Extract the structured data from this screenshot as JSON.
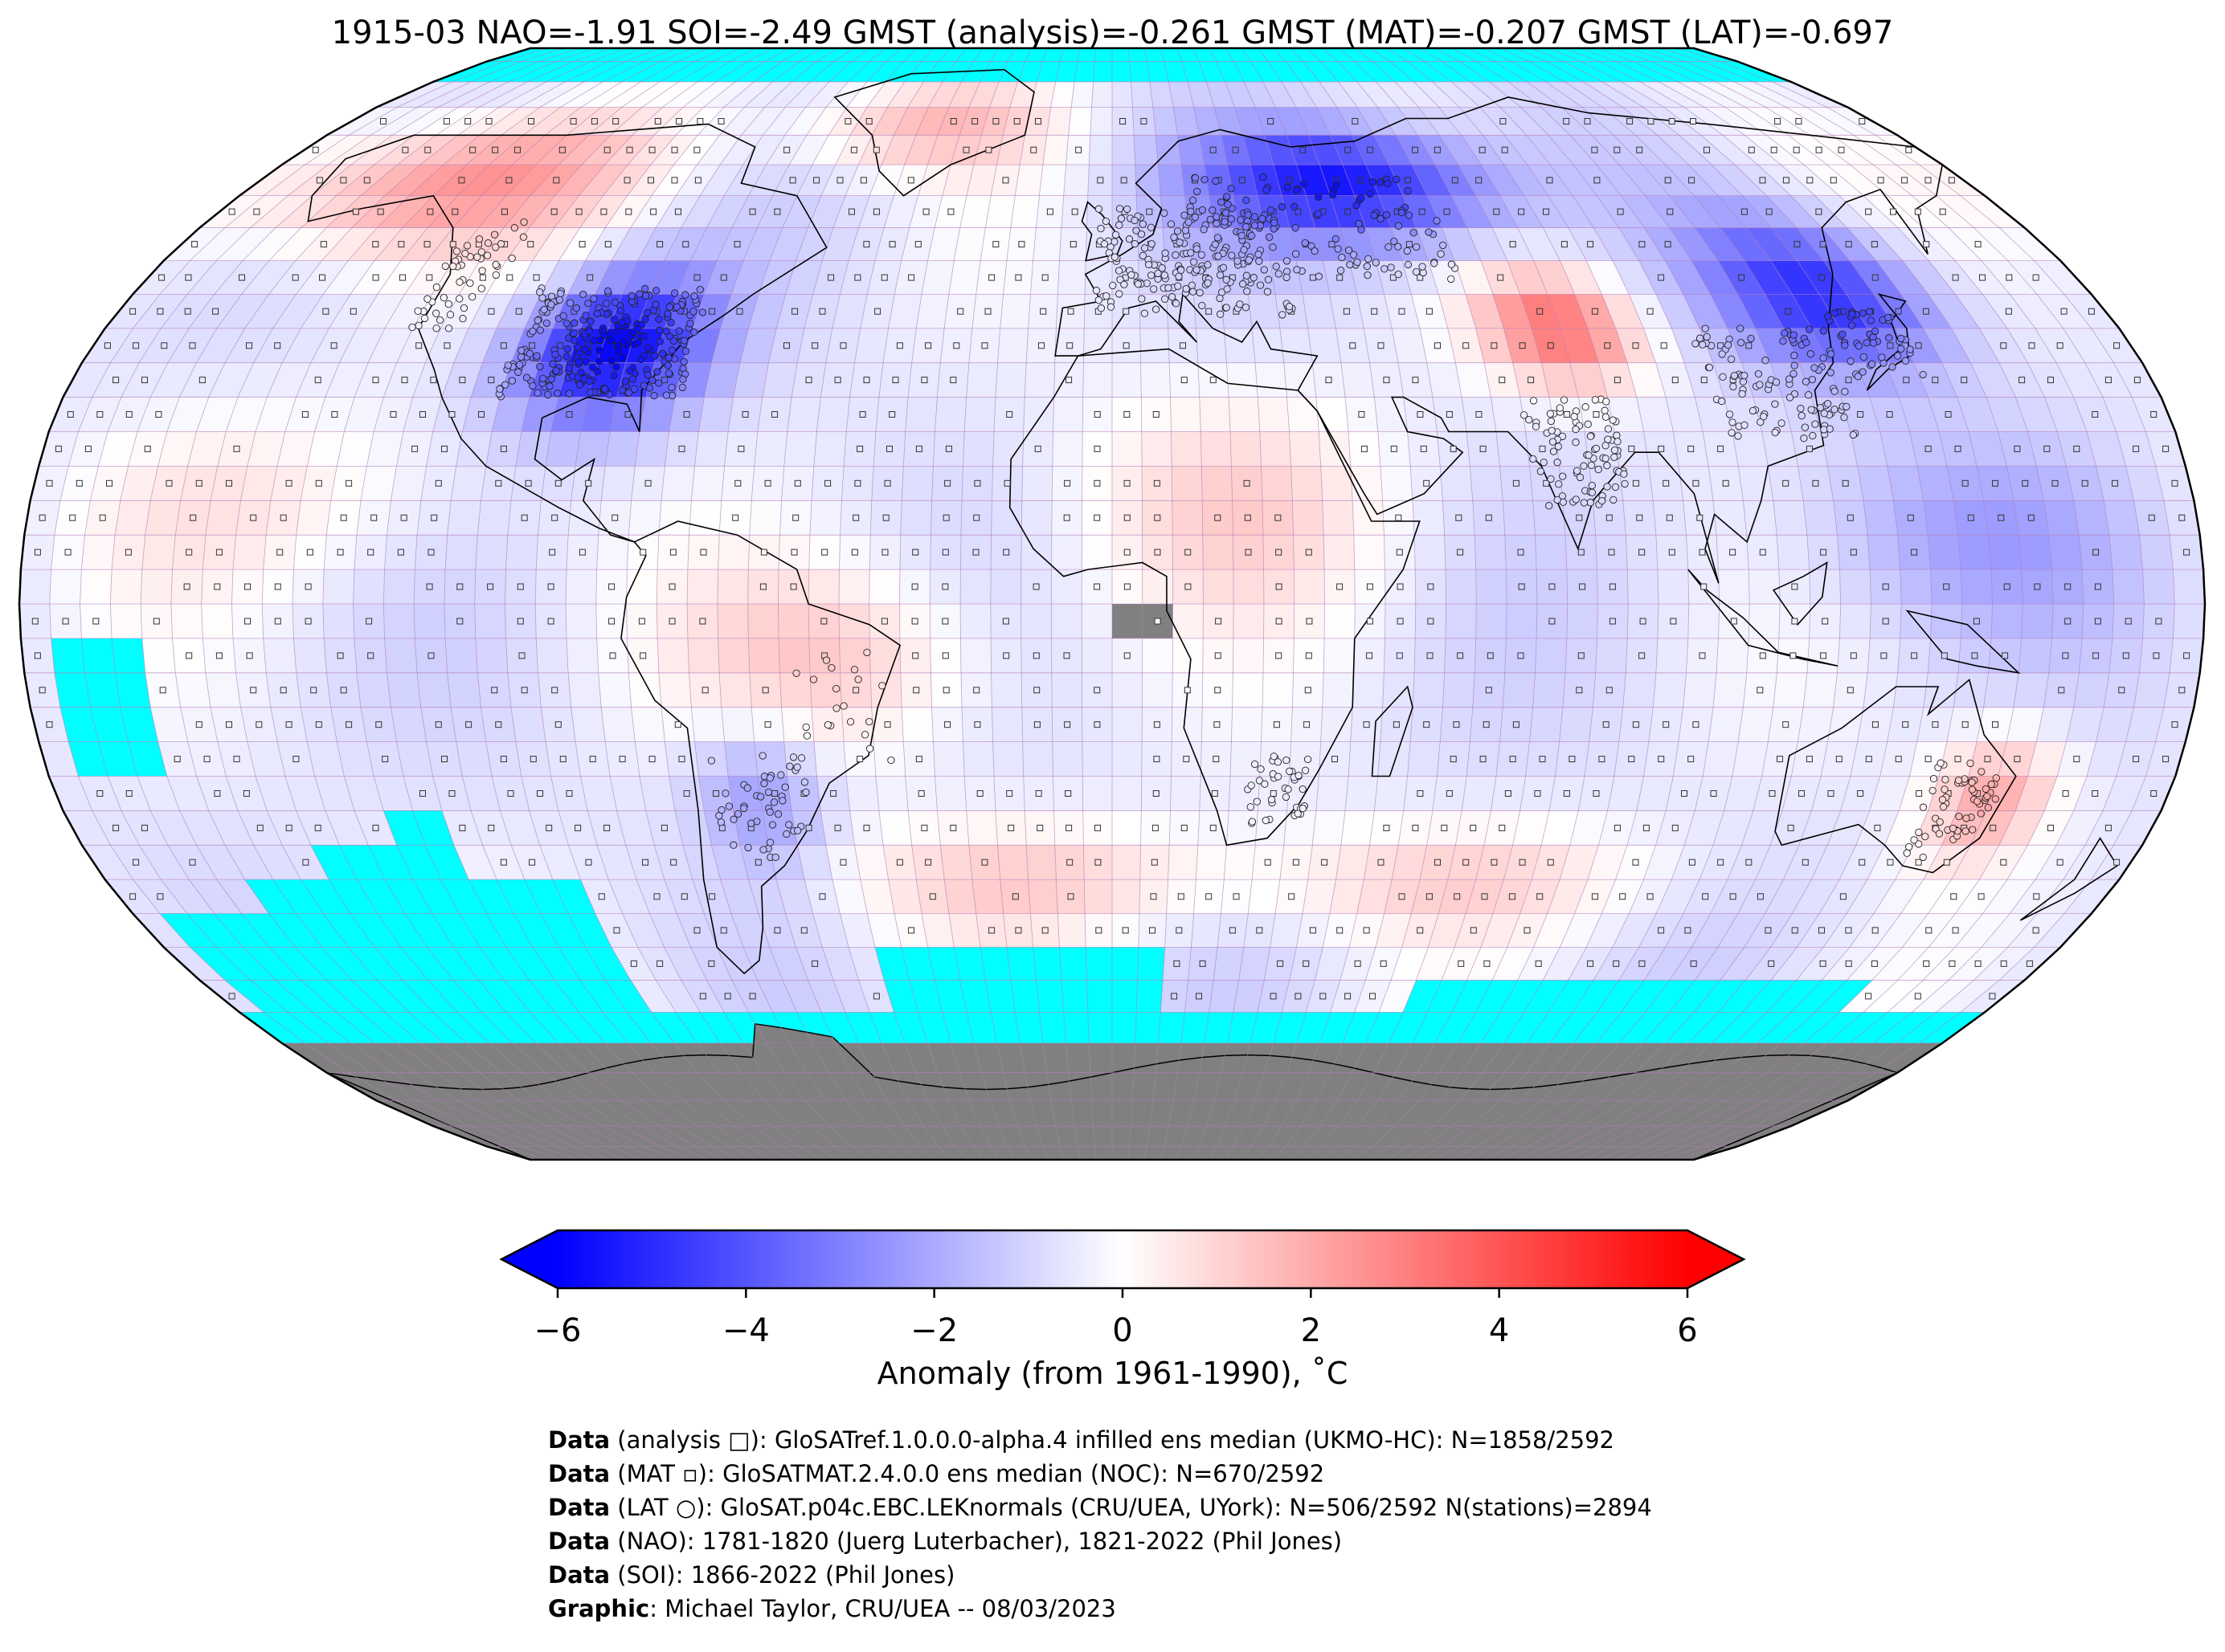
{
  "title": "1915-03 NAO=-1.91 SOI=-2.49 GMST (analysis)=-0.261 GMST (MAT)=-0.207 GMST (LAT)=-0.697",
  "colorbar": {
    "label": "Anomaly (from 1961-1990), ˚C",
    "min": -6,
    "max": 6,
    "ticks": [
      "−6",
      "−4",
      "−2",
      "0",
      "2",
      "4",
      "6"
    ],
    "tick_values": [
      -6,
      -4,
      -2,
      0,
      2,
      4,
      6
    ],
    "colors": {
      "low": "#0000ff",
      "mid": "#ffffff",
      "high": "#ff0000"
    }
  },
  "map": {
    "projection": "Robinson",
    "colors": {
      "missing": "#00ffff",
      "land_mask": "#808080",
      "grid": "#b07ab8",
      "coast": "#000000"
    }
  },
  "credits": [
    {
      "bold": "Data",
      "text": " (analysis □): GloSATref.1.0.0.0-alpha.4 infilled ens median (UKMO-HC): N=1858/2592"
    },
    {
      "bold": "Data",
      "text": " (MAT ▫): GloSATMAT.2.4.0.0 ens median (NOC): N=670/2592"
    },
    {
      "bold": "Data",
      "text": " (LAT ○): GloSAT.p04c.EBC.LEKnormals (CRU/UEA, UYork): N=506/2592 N(stations)=2894"
    },
    {
      "bold": "Data",
      "text": " (NAO): 1781-1820 (Juerg Luterbacher), 1821-2022 (Phil Jones)"
    },
    {
      "bold": "Data",
      "text": " (SOI): 1866-2022 (Phil Jones)"
    },
    {
      "bold": "Graphic",
      "text": ": Michael Taylor, CRU/UEA -- 08/03/2023"
    }
  ]
}
